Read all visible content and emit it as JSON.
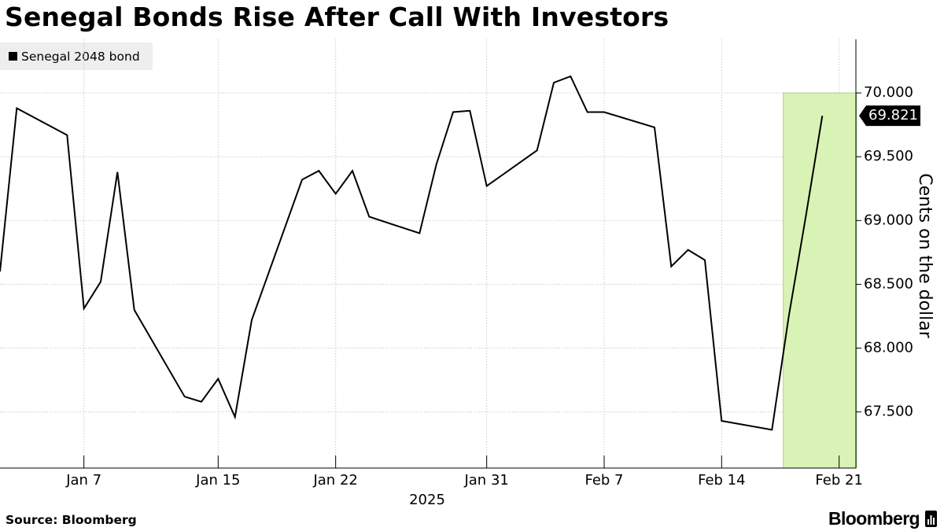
{
  "title": "Senegal Bonds Rise After Call With Investors",
  "legend": {
    "label": "Senegal 2048 bond"
  },
  "source": "Source: Bloomberg",
  "brand": {
    "name": "Bloomberg",
    "icon": "bloomberg-terminal-icon"
  },
  "colors": {
    "line": "#000000",
    "highlight_fill": "#d9f2b6",
    "highlight_stroke": "#a8d981",
    "grid": "#cccccc",
    "label_bg": "#000000",
    "legend_bg": "#eeeeee"
  },
  "chart_data": {
    "type": "line",
    "series": [
      {
        "name": "Senegal 2048 bond",
        "x": [
          "2025-01-02",
          "2025-01-03",
          "2025-01-06",
          "2025-01-07",
          "2025-01-08",
          "2025-01-09",
          "2025-01-10",
          "2025-01-13",
          "2025-01-14",
          "2025-01-15",
          "2025-01-16",
          "2025-01-17",
          "2025-01-20",
          "2025-01-21",
          "2025-01-22",
          "2025-01-23",
          "2025-01-24",
          "2025-01-27",
          "2025-01-28",
          "2025-01-29",
          "2025-01-30",
          "2025-01-31",
          "2025-02-03",
          "2025-02-04",
          "2025-02-05",
          "2025-02-06",
          "2025-02-07",
          "2025-02-10",
          "2025-02-11",
          "2025-02-12",
          "2025-02-13",
          "2025-02-14",
          "2025-02-17",
          "2025-02-18",
          "2025-02-19",
          "2025-02-20"
        ],
        "values": [
          68.6,
          69.88,
          69.67,
          68.31,
          68.52,
          69.38,
          68.3,
          67.62,
          67.58,
          67.76,
          67.46,
          68.22,
          69.32,
          69.39,
          69.21,
          69.39,
          69.03,
          68.9,
          69.44,
          69.85,
          69.86,
          69.27,
          69.55,
          70.08,
          70.13,
          69.85,
          69.85,
          69.73,
          68.64,
          68.77,
          68.69,
          67.43,
          67.36,
          68.25,
          69.02,
          69.821
        ]
      }
    ],
    "last_value_label": "69.821",
    "x_ticks": [
      {
        "date": "2025-01-07",
        "label": "Jan 7"
      },
      {
        "date": "2025-01-15",
        "label": "Jan 15"
      },
      {
        "date": "2025-01-22",
        "label": "Jan 22"
      },
      {
        "date": "2025-01-31",
        "label": "Jan 31"
      },
      {
        "date": "2025-02-07",
        "label": "Feb 7"
      },
      {
        "date": "2025-02-14",
        "label": "Feb 14"
      },
      {
        "date": "2025-02-21",
        "label": "Feb 21"
      }
    ],
    "x_year_label": "2025",
    "xlim": [
      "2025-01-02",
      "2025-02-22"
    ],
    "y_ticks": [
      67.5,
      68.0,
      68.5,
      69.0,
      69.5,
      70.0
    ],
    "y_tick_labels": [
      "67.500",
      "68.000",
      "68.500",
      "69.000",
      "69.500",
      "70.000"
    ],
    "ylim": [
      67.06,
      70.42
    ],
    "ylabel": "Cents on the dollar",
    "y_axis_side": "right",
    "grid": true,
    "highlight": {
      "x_start": "2025-02-18",
      "x_end": "2025-02-22",
      "y_top": 70.0
    },
    "legend_position": "top-left"
  }
}
